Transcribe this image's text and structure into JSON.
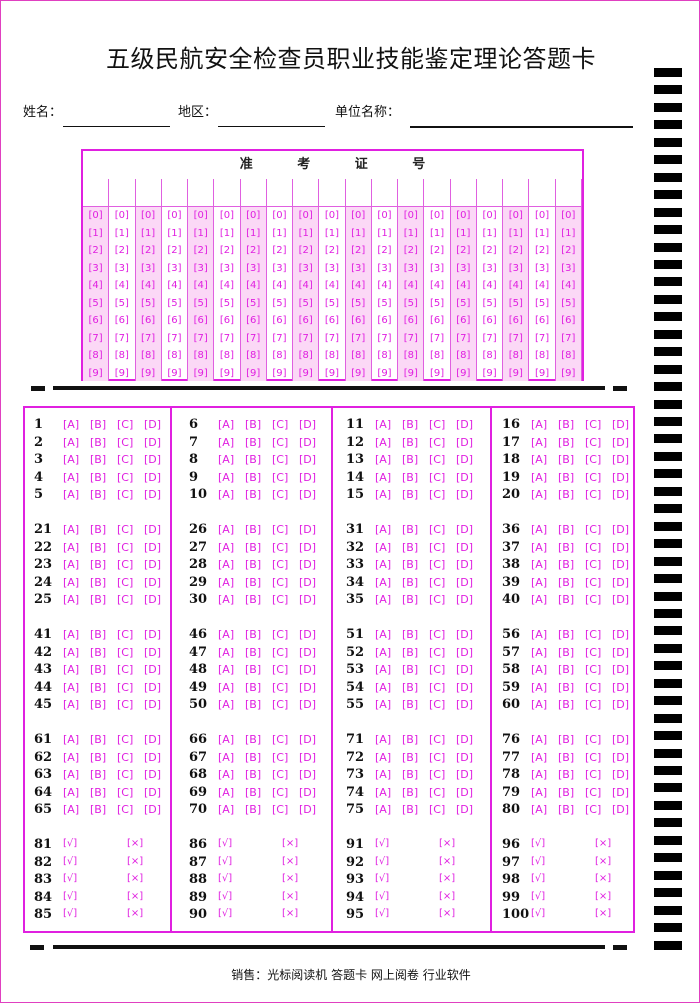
{
  "title": "五级民航安全检查员职业技能鉴定理论答题卡",
  "fields": {
    "name_label": "姓名：",
    "region_label": "地区：",
    "unit_label": "单位名称："
  },
  "id_section": {
    "header": "准 考 证 号",
    "columns": 19,
    "digits": [
      "0",
      "1",
      "2",
      "3",
      "4",
      "5",
      "6",
      "7",
      "8",
      "9"
    ]
  },
  "choice_options": [
    "A",
    "B",
    "C",
    "D"
  ],
  "tf_options": [
    "√",
    "×"
  ],
  "choice_groups": [
    [
      [
        1,
        2,
        3,
        4,
        5
      ],
      [
        6,
        7,
        8,
        9,
        10
      ],
      [
        11,
        12,
        13,
        14,
        15
      ],
      [
        16,
        17,
        18,
        19,
        20
      ]
    ],
    [
      [
        21,
        22,
        23,
        24,
        25
      ],
      [
        26,
        27,
        28,
        29,
        30
      ],
      [
        31,
        32,
        33,
        34,
        35
      ],
      [
        36,
        37,
        38,
        39,
        40
      ]
    ],
    [
      [
        41,
        42,
        43,
        44,
        45
      ],
      [
        46,
        47,
        48,
        49,
        50
      ],
      [
        51,
        52,
        53,
        54,
        55
      ],
      [
        56,
        57,
        58,
        59,
        60
      ]
    ],
    [
      [
        61,
        62,
        63,
        64,
        65
      ],
      [
        66,
        67,
        68,
        69,
        70
      ],
      [
        71,
        72,
        73,
        74,
        75
      ],
      [
        76,
        77,
        78,
        79,
        80
      ]
    ]
  ],
  "tf_group": [
    [
      81,
      82,
      83,
      84,
      85
    ],
    [
      86,
      87,
      88,
      89,
      90
    ],
    [
      91,
      92,
      93,
      94,
      95
    ],
    [
      96,
      97,
      98,
      99,
      100
    ]
  ],
  "footer": "销售：光标阅读机  答题卡  网上阅卷  行业软件",
  "colors": {
    "accent": "#e020e0",
    "id_shade": "#fbd8f6",
    "timing_mark": "#000000"
  }
}
